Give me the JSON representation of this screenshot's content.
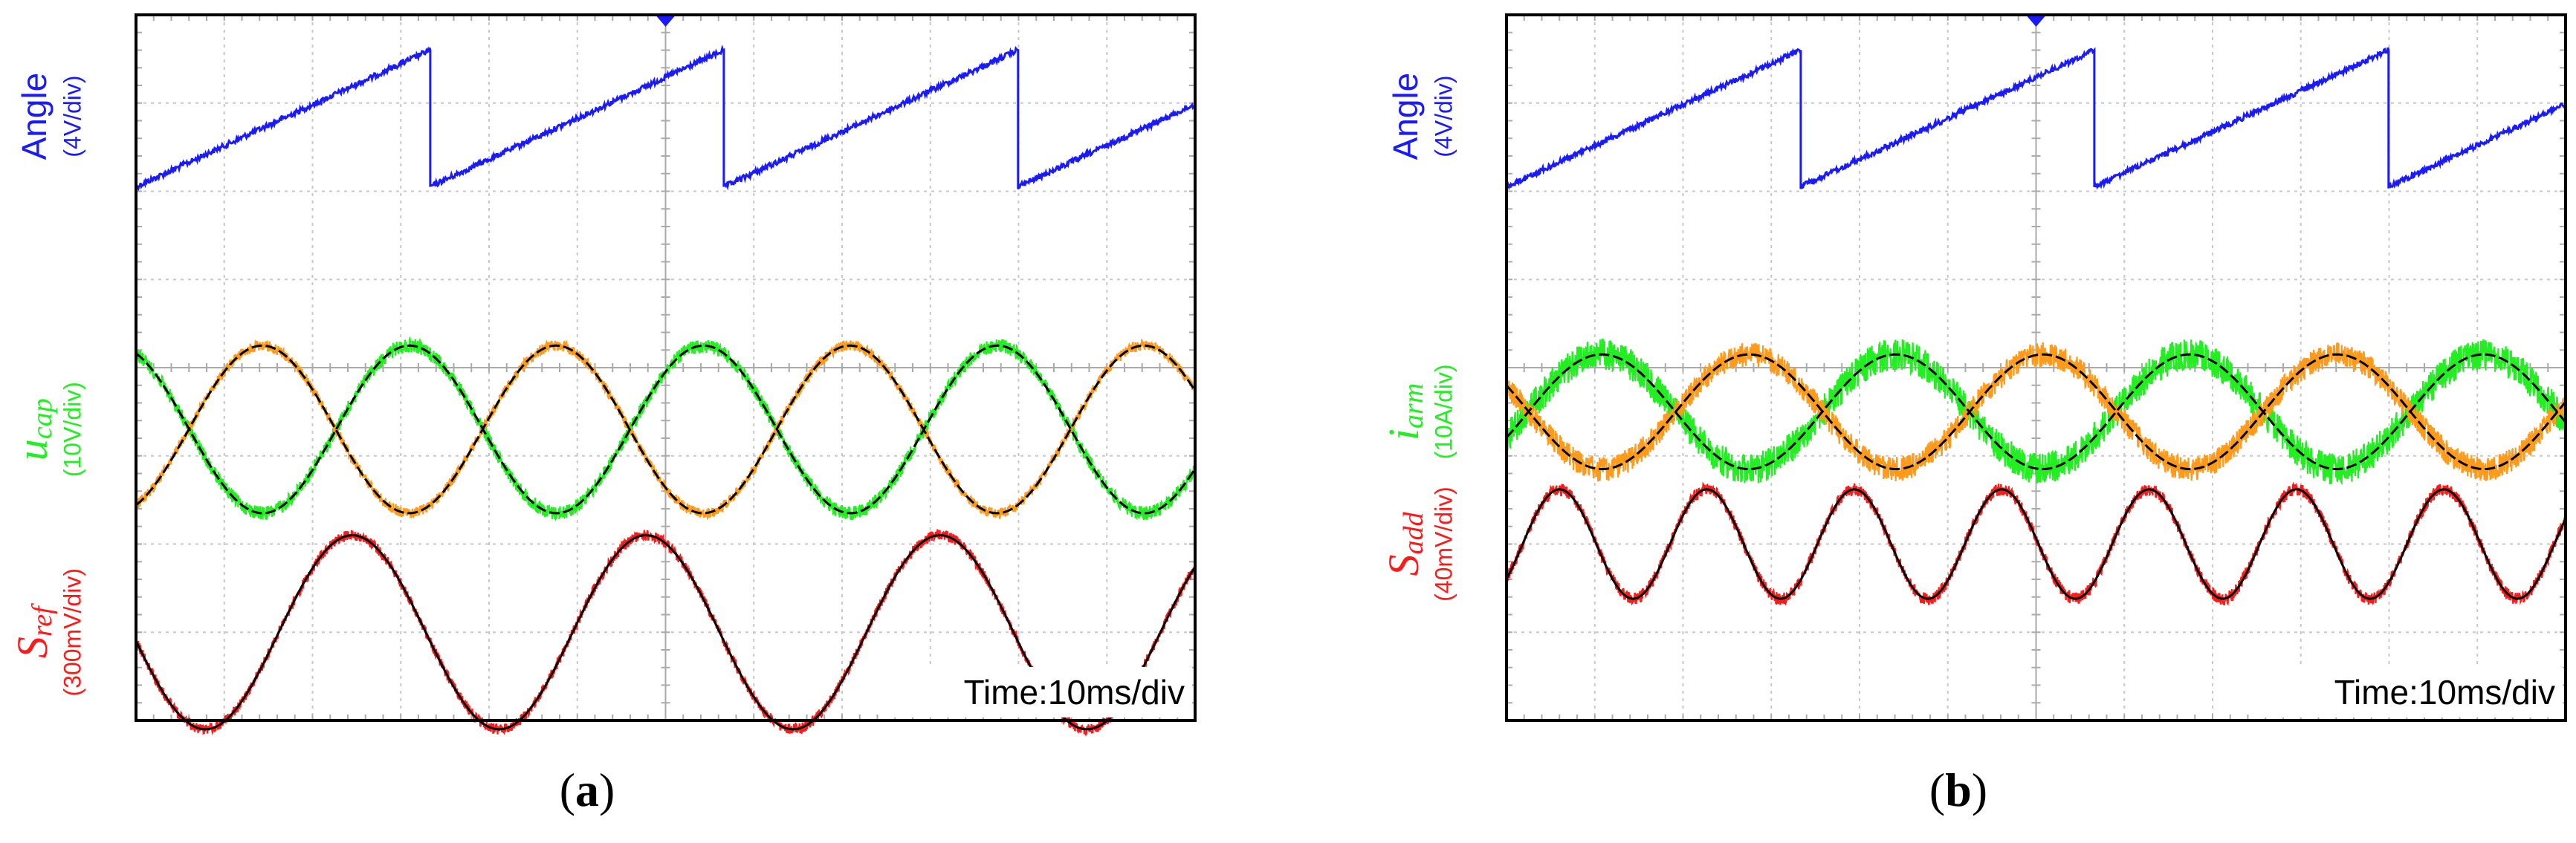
{
  "colors": {
    "angle": "#1a1aff",
    "green": "#22ee22",
    "orange": "#ff9a1a",
    "red": "#ff1a1a",
    "fit": "#000000",
    "grid": "#c8c8c8",
    "frame": "#000000"
  },
  "chart_data": [
    {
      "type": "line",
      "panel_label": "(a)",
      "panel_letter": "a",
      "time_text": "Time:10ms/div",
      "x_divisions": 12,
      "y_divisions": 8,
      "channels": [
        {
          "id": "angle",
          "label": "Angle",
          "scale": "(4V/div)",
          "color": "#1a1aff",
          "kind": "sawtooth",
          "period_div": 3.33,
          "start_div": 3.33,
          "levels_div": [
            0.4,
            1.95
          ]
        },
        {
          "id": "ucap",
          "label_base": "u",
          "label_sub": "cap",
          "scale": "(10V/div)",
          "color": "#22ee22",
          "kind": "sine_pair",
          "period_div": 3.33,
          "center_div": 4.7,
          "amp_div": 0.95,
          "series": [
            {
              "color": "#22ee22",
              "phase_div": 3.1,
              "noise_div": 0.08
            },
            {
              "color": "#ff9a1a",
              "phase_div": 1.43,
              "noise_div": 0.06
            }
          ]
        },
        {
          "id": "sref",
          "label_base": "S",
          "label_sub": "ref",
          "scale": "(300mV/div)",
          "color": "#ff1a1a",
          "kind": "sine",
          "period_div": 3.33,
          "center_div": 7.0,
          "amp_div": 1.1,
          "phase_div": 2.45,
          "noise_div": 0.06
        }
      ]
    },
    {
      "type": "line",
      "panel_label": "(b)",
      "panel_letter": "b",
      "time_text": "Time:10ms/div",
      "x_divisions": 12,
      "y_divisions": 8,
      "channels": [
        {
          "id": "angle",
          "label": "Angle",
          "scale": "(4V/div)",
          "color": "#1a1aff",
          "kind": "sawtooth",
          "period_div": 3.33,
          "start_div": 3.33,
          "levels_div": [
            0.4,
            1.95
          ]
        },
        {
          "id": "iarm",
          "label_base": "i",
          "label_sub": "arm",
          "scale": "(10A/div)",
          "color": "#22ee22",
          "kind": "sine_pair",
          "period_div": 3.33,
          "center_div": 4.5,
          "amp_div": 0.65,
          "series": [
            {
              "color": "#22ee22",
              "phase_div": 1.08,
              "noise_div": 0.18
            },
            {
              "color": "#ff9a1a",
              "phase_div": 2.75,
              "noise_div": 0.14
            }
          ]
        },
        {
          "id": "sadd",
          "label_base": "S",
          "label_sub": "add",
          "scale": "(40mV/div)",
          "color": "#ff1a1a",
          "kind": "sine",
          "period_div": 1.67,
          "center_div": 6.0,
          "amp_div": 0.62,
          "phase_div": 0.6,
          "noise_div": 0.07
        }
      ]
    }
  ]
}
